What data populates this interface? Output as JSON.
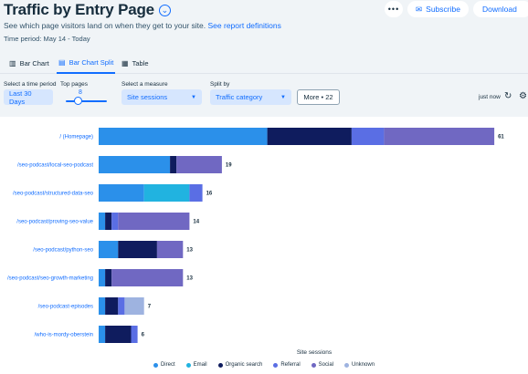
{
  "header": {
    "title": "Traffic by Entry Page",
    "subtitle": "See which page visitors land on when they get to your site.",
    "report_link": "See report definitions",
    "time_period": "Time period: May 14 - Today",
    "more_label": "•••",
    "subscribe_label": "Subscribe",
    "download_label": "Download"
  },
  "tabs": [
    {
      "label": "Bar Chart",
      "icon": "bar-chart-icon",
      "active": false
    },
    {
      "label": "Bar Chart Split",
      "icon": "split-chart-icon",
      "active": true
    },
    {
      "label": "Table",
      "icon": "table-icon",
      "active": false
    }
  ],
  "filters": {
    "time_label": "Select a time period",
    "time_value": "Last 30 Days",
    "top_label": "Top pages",
    "top_value": "8",
    "top_fraction": 0.3,
    "measure_label": "Select a measure",
    "measure_value": "Site sessions",
    "split_label": "Split by",
    "split_value": "Traffic category",
    "more_filters": "More • 22",
    "updated": "just now"
  },
  "colors": {
    "Direct": "#2b90ea",
    "Email": "#21b3e0",
    "Organic search": "#0f1c5e",
    "Referral": "#5a6ee4",
    "Social": "#7068c2",
    "Unknown": "#9eb3e0"
  },
  "chart_data": {
    "type": "bar",
    "orientation": "horizontal",
    "stacked": true,
    "xlabel": "Site sessions",
    "legend_position": "bottom",
    "categories": [
      "/ (Homepage)",
      "/seo-podcast/local-seo-podcast",
      "/seo-podcast/structured-data-seo",
      "/seo-podcast/proving-seo-value",
      "/seo-podcast/python-seo",
      "/seo-podcast/seo-growth-marketing",
      "/seo-podcast-episodes",
      "/who-is-mordy-oberstein"
    ],
    "totals": [
      61,
      19,
      16,
      14,
      13,
      13,
      7,
      6
    ],
    "series": [
      {
        "name": "Direct",
        "values": [
          26,
          11,
          7,
          1,
          3,
          1,
          1,
          1
        ]
      },
      {
        "name": "Email",
        "values": [
          0,
          0,
          7,
          0,
          0,
          0,
          0,
          0
        ]
      },
      {
        "name": "Organic search",
        "values": [
          13,
          1,
          0,
          1,
          6,
          1,
          2,
          4
        ]
      },
      {
        "name": "Referral",
        "values": [
          5,
          0,
          2,
          1,
          0,
          0,
          1,
          1
        ]
      },
      {
        "name": "Social",
        "values": [
          17,
          7,
          0,
          11,
          4,
          11,
          0,
          0
        ]
      },
      {
        "name": "Unknown",
        "values": [
          0,
          0,
          0,
          0,
          0,
          0,
          3,
          0
        ]
      }
    ]
  }
}
